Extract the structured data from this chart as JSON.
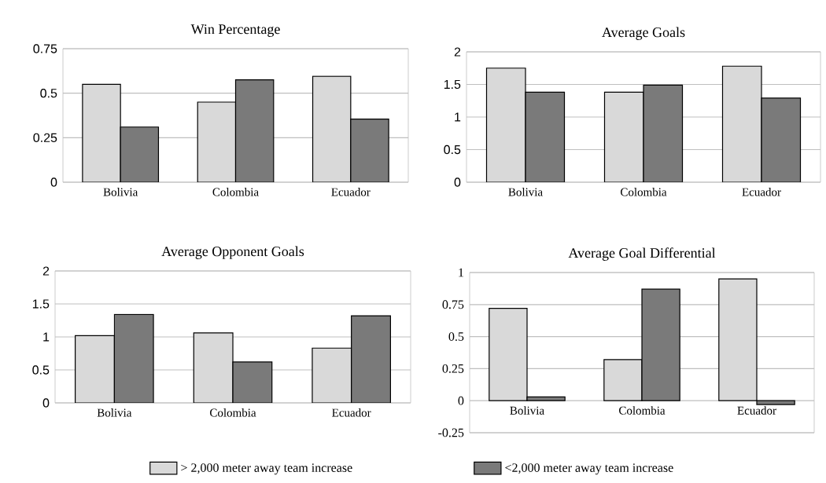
{
  "chart_data": [
    {
      "type": "bar",
      "title": "Win Percentage",
      "categories": [
        "Bolivia",
        "Colombia",
        "Ecuador"
      ],
      "ylim": [
        0,
        0.75
      ],
      "yticks": [
        0,
        0.25,
        0.5,
        0.75
      ],
      "grid": "y",
      "series": [
        {
          "color": "#d9d9d9",
          "values": [
            0.55,
            0.45,
            0.595
          ]
        },
        {
          "color": "#7a7a7a",
          "values": [
            0.31,
            0.575,
            0.355
          ]
        }
      ]
    },
    {
      "type": "bar",
      "title": "Average Goals",
      "categories": [
        "Bolivia",
        "Colombia",
        "Ecuador"
      ],
      "ylim": [
        0,
        2
      ],
      "yticks": [
        0,
        0.5,
        1,
        1.5,
        2
      ],
      "grid": "y",
      "series": [
        {
          "color": "#d9d9d9",
          "values": [
            1.75,
            1.38,
            1.78
          ]
        },
        {
          "color": "#7a7a7a",
          "values": [
            1.38,
            1.49,
            1.29
          ]
        }
      ]
    },
    {
      "type": "bar",
      "title": "Average Opponent Goals",
      "categories": [
        "Bolivia",
        "Colombia",
        "Ecuador"
      ],
      "ylim": [
        0,
        2
      ],
      "yticks": [
        0,
        0.5,
        1,
        1.5,
        2
      ],
      "grid": "y",
      "legend": "bottom",
      "series": [
        {
          "name": "> 2,000 meter away team increase",
          "color": "#d9d9d9",
          "values": [
            1.02,
            1.06,
            0.83
          ]
        },
        {
          "name": "<2,000 meter away team increase",
          "color": "#7a7a7a",
          "values": [
            1.34,
            0.62,
            1.32
          ]
        }
      ]
    },
    {
      "type": "bar",
      "title": "Average Goal Differential",
      "categories": [
        "Bolivia",
        "Colombia",
        "Ecuador"
      ],
      "ylim": [
        -0.25,
        1
      ],
      "yticks": [
        -0.25,
        0,
        0.25,
        0.5,
        0.75,
        1
      ],
      "grid": "y",
      "series": [
        {
          "color": "#d9d9d9",
          "values": [
            0.72,
            0.32,
            0.95
          ]
        },
        {
          "color": "#7a7a7a",
          "values": [
            0.03,
            0.87,
            -0.03
          ]
        }
      ]
    }
  ]
}
